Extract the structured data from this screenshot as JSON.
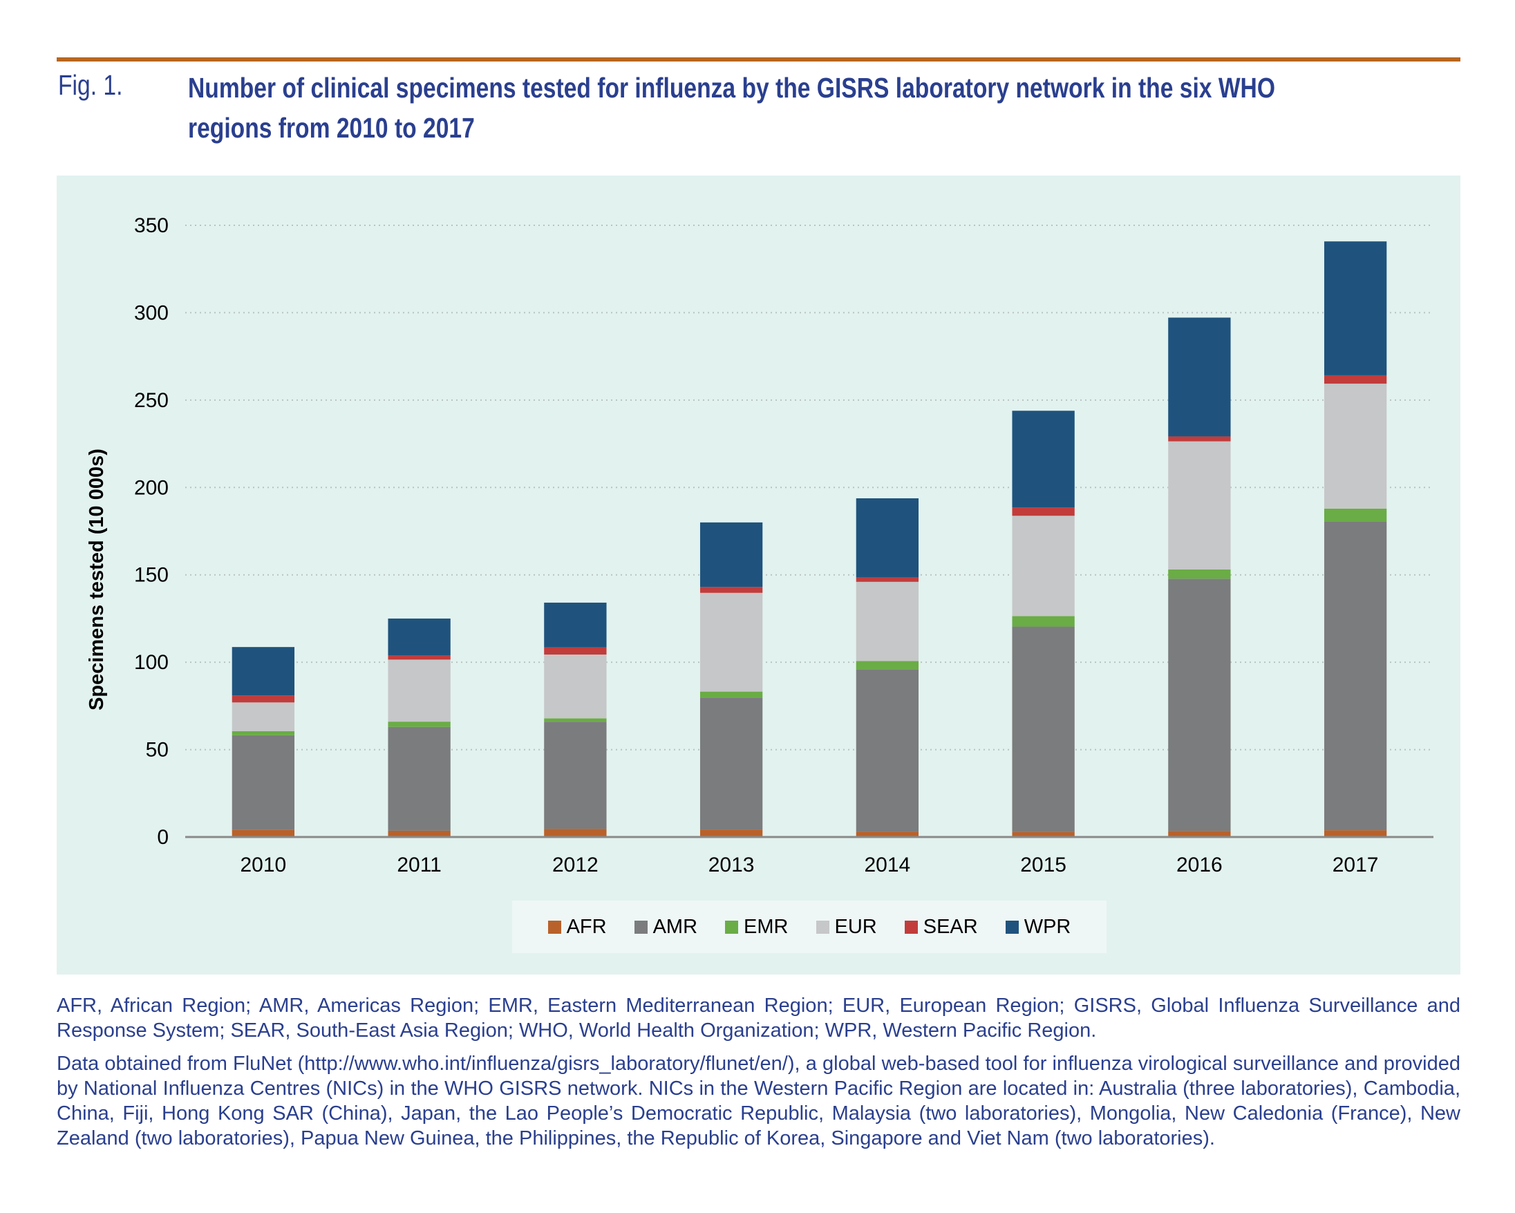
{
  "figure": {
    "label": "Fig. 1.",
    "title_line1": "Number of clinical specimens tested for influenza by the GISRS laboratory network in the six WHO",
    "title_line2": "regions from 2010 to 2017"
  },
  "colors": {
    "accent_rule": "#b8661f",
    "title_text": "#2a3f8f",
    "panel_bg": "#e2f2ef"
  },
  "chart_data": {
    "type": "bar",
    "stacked": true,
    "title": "Number of clinical specimens tested for influenza by the GISRS laboratory network in the six WHO regions from 2010 to 2017",
    "xlabel": "",
    "ylabel": "Specimens tested (10 000s)",
    "ylim": [
      0,
      350
    ],
    "yticks": [
      0,
      50,
      100,
      150,
      200,
      250,
      300,
      350
    ],
    "grid": true,
    "legend_position": "bottom",
    "categories": [
      "2010",
      "2011",
      "2012",
      "2013",
      "2014",
      "2015",
      "2016",
      "2017"
    ],
    "series": [
      {
        "name": "AFR",
        "color": "#b9612a",
        "values": [
          4.1,
          3.6,
          4.7,
          4.3,
          3.0,
          2.8,
          3.5,
          3.9
        ]
      },
      {
        "name": "AMR",
        "color": "#7b7c7d",
        "values": [
          54.1,
          59.4,
          61.2,
          75.5,
          93.0,
          117.6,
          144.3,
          176.6
        ]
      },
      {
        "name": "EMR",
        "color": "#6aac46",
        "values": [
          2.4,
          3.0,
          2.0,
          3.4,
          4.7,
          6.0,
          5.3,
          7.4
        ]
      },
      {
        "name": "EUR",
        "color": "#c6c7c8",
        "values": [
          16.4,
          35.5,
          36.5,
          56.5,
          45.3,
          57.4,
          73.3,
          71.5
        ]
      },
      {
        "name": "SEAR",
        "color": "#c23c3c",
        "values": [
          4.0,
          2.5,
          4.1,
          3.4,
          2.7,
          4.8,
          2.8,
          4.8
        ]
      },
      {
        "name": "WPR",
        "color": "#1f537d",
        "values": [
          27.7,
          21.0,
          25.6,
          36.9,
          45.1,
          55.3,
          68.0,
          76.6
        ]
      }
    ]
  },
  "notes": {
    "abbreviations": "AFR, African Region; AMR, Americas Region; EMR, Eastern Mediterranean Region; EUR, European Region; GISRS, Global Influenza Surveillance and Response System; SEAR, South-East Asia Region; WHO, World Health Organization; WPR, Western Pacific Region.",
    "source": "Data obtained from FluNet (http://www.who.int/influenza/gisrs_laboratory/flunet/en/), a global web-based tool for influenza virological surveillance and provided by National Influenza Centres (NICs) in the WHO GISRS network. NICs in the Western Pacific Region are located in: Australia (three laboratories), Cambodia, China, Fiji, Hong Kong SAR (China), Japan, the Lao People’s Democratic Republic, Malaysia (two laboratories), Mongolia, New Caledonia (France), New Zealand (two laboratories), Papua New Guinea, the Philippines, the Republic of Korea, Singapore and Viet Nam (two laboratories)."
  }
}
